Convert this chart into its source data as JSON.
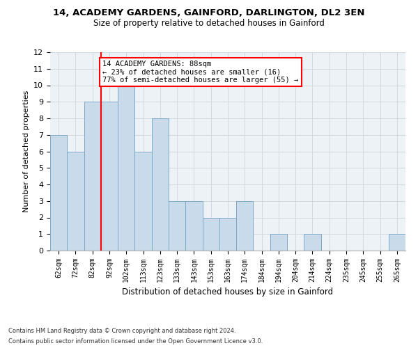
{
  "title1": "14, ACADEMY GARDENS, GAINFORD, DARLINGTON, DL2 3EN",
  "title2": "Size of property relative to detached houses in Gainford",
  "xlabel": "Distribution of detached houses by size in Gainford",
  "ylabel": "Number of detached properties",
  "categories": [
    "62sqm",
    "72sqm",
    "82sqm",
    "92sqm",
    "102sqm",
    "113sqm",
    "123sqm",
    "133sqm",
    "143sqm",
    "153sqm",
    "163sqm",
    "174sqm",
    "184sqm",
    "194sqm",
    "204sqm",
    "214sqm",
    "224sqm",
    "235sqm",
    "245sqm",
    "255sqm",
    "265sqm"
  ],
  "values": [
    7,
    6,
    9,
    9,
    10,
    6,
    8,
    3,
    3,
    2,
    2,
    3,
    0,
    1,
    0,
    1,
    0,
    0,
    0,
    0,
    1
  ],
  "bar_color": "#c9daea",
  "bar_edge_color": "#7baac8",
  "grid_color": "#d0d8e0",
  "background_color": "#edf2f7",
  "annotation_line1": "14 ACADEMY GARDENS: 88sqm",
  "annotation_line2": "← 23% of detached houses are smaller (16)",
  "annotation_line3": "77% of semi-detached houses are larger (55) →",
  "annotation_box_color": "white",
  "annotation_border_color": "red",
  "red_line_x": 2.5,
  "ylim": [
    0,
    12
  ],
  "yticks": [
    0,
    1,
    2,
    3,
    4,
    5,
    6,
    7,
    8,
    9,
    10,
    11,
    12
  ],
  "footnote1": "Contains HM Land Registry data © Crown copyright and database right 2024.",
  "footnote2": "Contains public sector information licensed under the Open Government Licence v3.0.",
  "title1_fontsize": 9.5,
  "title2_fontsize": 8.5
}
